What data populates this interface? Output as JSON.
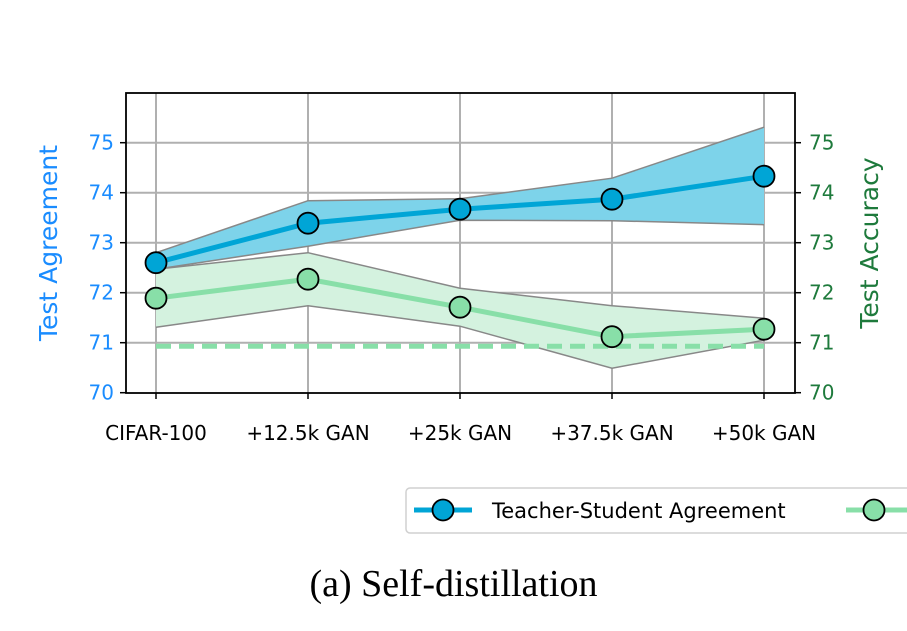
{
  "chart_data": {
    "type": "line",
    "categories": [
      "CIFAR-100",
      "+12.5k GAN",
      "+25k GAN",
      "+37.5k GAN",
      "+50k GAN"
    ],
    "left_axis": {
      "label": "Test Agreement",
      "ylim": [
        70,
        76
      ],
      "ticks": [
        70,
        71,
        72,
        73,
        74,
        75
      ],
      "color": "#1a8cff"
    },
    "right_axis": {
      "label": "Test Accuracy",
      "ylim": [
        70,
        76
      ],
      "ticks": [
        70,
        71,
        72,
        73,
        74,
        75
      ],
      "color": "#1e7a3c"
    },
    "grid": true,
    "series": [
      {
        "name": "Teacher-Student Agreement",
        "axis": "left",
        "color": "#00a5d6",
        "band_color": "#7dd3ea",
        "values": [
          72.6,
          73.39,
          73.67,
          73.87,
          74.33
        ],
        "upper": [
          72.8,
          73.84,
          73.88,
          74.29,
          75.31
        ],
        "lower": [
          72.47,
          72.93,
          73.45,
          73.44,
          73.36
        ]
      },
      {
        "axis": "right",
        "color": "#88dfa8",
        "band_color": "#d4f2df",
        "values": [
          71.89,
          72.27,
          71.71,
          71.12,
          71.27
        ],
        "upper": [
          72.47,
          72.8,
          72.09,
          71.74,
          71.49
        ],
        "lower": [
          71.31,
          71.74,
          71.33,
          70.49,
          71.05
        ]
      }
    ],
    "baseline": {
      "axis": "right",
      "value": 70.93,
      "style": "dashed",
      "color": "#88dfa8"
    },
    "legend_placement": "bottom"
  },
  "caption": "(a) Self-distillation"
}
